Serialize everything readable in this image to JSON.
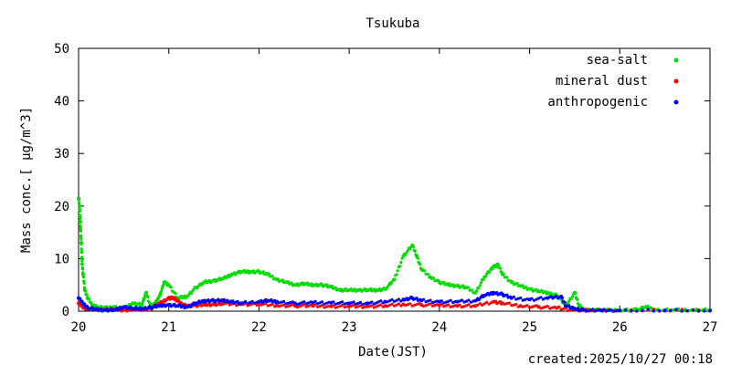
{
  "chart_data": {
    "type": "scatter",
    "title": "Tsukuba",
    "xlabel": "Date(JST)",
    "ylabel": "Mass conc.[ μg/m^3]",
    "footer": "created:2025/10/27 00:18",
    "xlim": [
      20,
      27
    ],
    "ylim": [
      0,
      50
    ],
    "x_ticks": [
      20,
      21,
      22,
      23,
      24,
      25,
      26,
      27
    ],
    "y_ticks": [
      0,
      10,
      20,
      30,
      40,
      50
    ],
    "grid": false,
    "legend_position": "top-right",
    "series": [
      {
        "name": "sea-salt",
        "color": "#00dd00",
        "points": [
          [
            20.0,
            21.5
          ],
          [
            20.01,
            20.0
          ],
          [
            20.02,
            17.0
          ],
          [
            20.03,
            13.0
          ],
          [
            20.04,
            9.0
          ],
          [
            20.05,
            7.0
          ],
          [
            20.07,
            4.0
          ],
          [
            20.1,
            2.5
          ],
          [
            20.15,
            1.2
          ],
          [
            20.2,
            0.8
          ],
          [
            20.3,
            0.6
          ],
          [
            20.4,
            0.8
          ],
          [
            20.5,
            0.5
          ],
          [
            20.6,
            1.5
          ],
          [
            20.7,
            1.2
          ],
          [
            20.75,
            3.5
          ],
          [
            20.8,
            0.8
          ],
          [
            20.85,
            1.5
          ],
          [
            20.9,
            3.0
          ],
          [
            20.95,
            5.5
          ],
          [
            21.0,
            5.0
          ],
          [
            21.1,
            2.5
          ],
          [
            21.2,
            2.8
          ],
          [
            21.3,
            4.5
          ],
          [
            21.4,
            5.5
          ],
          [
            21.5,
            5.8
          ],
          [
            21.6,
            6.2
          ],
          [
            21.7,
            7.0
          ],
          [
            21.8,
            7.5
          ],
          [
            21.9,
            7.5
          ],
          [
            22.0,
            7.5
          ],
          [
            22.1,
            7.0
          ],
          [
            22.2,
            6.0
          ],
          [
            22.3,
            5.5
          ],
          [
            22.4,
            5.0
          ],
          [
            22.5,
            5.2
          ],
          [
            22.6,
            5.0
          ],
          [
            22.7,
            5.0
          ],
          [
            22.8,
            4.6
          ],
          [
            22.9,
            4.0
          ],
          [
            23.0,
            4.0
          ],
          [
            23.1,
            4.0
          ],
          [
            23.2,
            4.0
          ],
          [
            23.3,
            4.0
          ],
          [
            23.4,
            4.2
          ],
          [
            23.5,
            6.0
          ],
          [
            23.6,
            10.5
          ],
          [
            23.7,
            12.5
          ],
          [
            23.75,
            10.5
          ],
          [
            23.8,
            8.0
          ],
          [
            23.9,
            6.5
          ],
          [
            24.0,
            5.5
          ],
          [
            24.1,
            5.0
          ],
          [
            24.2,
            4.8
          ],
          [
            24.3,
            4.5
          ],
          [
            24.4,
            3.5
          ],
          [
            24.5,
            6.5
          ],
          [
            24.6,
            8.5
          ],
          [
            24.65,
            8.8
          ],
          [
            24.7,
            7.0
          ],
          [
            24.8,
            5.5
          ],
          [
            24.9,
            4.8
          ],
          [
            25.0,
            4.2
          ],
          [
            25.1,
            3.8
          ],
          [
            25.2,
            3.5
          ],
          [
            25.3,
            3.0
          ],
          [
            25.4,
            1.0
          ],
          [
            25.5,
            3.5
          ],
          [
            25.55,
            1.0
          ],
          [
            25.6,
            0.3
          ],
          [
            25.8,
            0.2
          ],
          [
            26.0,
            0.2
          ],
          [
            26.2,
            0.3
          ],
          [
            26.3,
            0.8
          ],
          [
            26.4,
            0.2
          ],
          [
            26.6,
            0.2
          ],
          [
            26.8,
            0.2
          ],
          [
            27.0,
            0.2
          ]
        ]
      },
      {
        "name": "mineral dust",
        "color": "#ff0000",
        "points": [
          [
            20.0,
            1.5
          ],
          [
            20.05,
            0.8
          ],
          [
            20.1,
            0.4
          ],
          [
            20.2,
            0.2
          ],
          [
            20.3,
            0.3
          ],
          [
            20.4,
            0.3
          ],
          [
            20.5,
            0.2
          ],
          [
            20.6,
            0.3
          ],
          [
            20.7,
            0.4
          ],
          [
            20.8,
            0.5
          ],
          [
            20.9,
            1.5
          ],
          [
            21.0,
            2.5
          ],
          [
            21.05,
            2.5
          ],
          [
            21.1,
            2.0
          ],
          [
            21.15,
            1.2
          ],
          [
            21.2,
            1.0
          ],
          [
            21.3,
            1.1
          ],
          [
            21.4,
            1.2
          ],
          [
            21.5,
            1.3
          ],
          [
            21.6,
            1.4
          ],
          [
            21.8,
            1.3
          ],
          [
            22.0,
            1.3
          ],
          [
            22.2,
            1.1
          ],
          [
            22.4,
            1.0
          ],
          [
            22.6,
            1.0
          ],
          [
            22.8,
            0.9
          ],
          [
            23.0,
            0.9
          ],
          [
            23.2,
            0.9
          ],
          [
            23.4,
            1.0
          ],
          [
            23.6,
            1.3
          ],
          [
            23.8,
            1.2
          ],
          [
            24.0,
            1.1
          ],
          [
            24.2,
            1.0
          ],
          [
            24.4,
            1.0
          ],
          [
            24.6,
            1.8
          ],
          [
            24.7,
            1.5
          ],
          [
            24.9,
            1.0
          ],
          [
            25.1,
            0.8
          ],
          [
            25.3,
            0.6
          ],
          [
            25.5,
            0.2
          ],
          [
            25.7,
            0.1
          ],
          [
            26.0,
            0.1
          ],
          [
            26.5,
            0.1
          ],
          [
            27.0,
            0.1
          ]
        ]
      },
      {
        "name": "anthropogenic",
        "color": "#0000ff",
        "points": [
          [
            20.0,
            2.5
          ],
          [
            20.05,
            1.5
          ],
          [
            20.1,
            0.6
          ],
          [
            20.2,
            0.3
          ],
          [
            20.3,
            0.2
          ],
          [
            20.4,
            0.2
          ],
          [
            20.5,
            0.8
          ],
          [
            20.6,
            0.5
          ],
          [
            20.7,
            0.5
          ],
          [
            20.8,
            0.7
          ],
          [
            20.9,
            1.0
          ],
          [
            21.0,
            1.2
          ],
          [
            21.1,
            1.0
          ],
          [
            21.2,
            0.8
          ],
          [
            21.3,
            1.5
          ],
          [
            21.4,
            2.0
          ],
          [
            21.5,
            2.0
          ],
          [
            21.6,
            2.0
          ],
          [
            21.7,
            1.8
          ],
          [
            21.8,
            1.5
          ],
          [
            22.0,
            1.8
          ],
          [
            22.1,
            2.0
          ],
          [
            22.2,
            1.8
          ],
          [
            22.4,
            1.5
          ],
          [
            22.6,
            1.6
          ],
          [
            22.8,
            1.6
          ],
          [
            23.0,
            1.5
          ],
          [
            23.2,
            1.5
          ],
          [
            23.4,
            1.8
          ],
          [
            23.6,
            2.2
          ],
          [
            23.7,
            2.5
          ],
          [
            23.8,
            2.0
          ],
          [
            24.0,
            1.8
          ],
          [
            24.2,
            1.8
          ],
          [
            24.4,
            2.0
          ],
          [
            24.5,
            3.0
          ],
          [
            24.6,
            3.5
          ],
          [
            24.7,
            3.2
          ],
          [
            24.8,
            2.5
          ],
          [
            25.0,
            2.2
          ],
          [
            25.2,
            2.5
          ],
          [
            25.35,
            2.8
          ],
          [
            25.4,
            1.0
          ],
          [
            25.5,
            0.5
          ],
          [
            25.6,
            0.2
          ],
          [
            25.8,
            0.1
          ],
          [
            26.0,
            0.1
          ],
          [
            26.5,
            0.1
          ],
          [
            27.0,
            0.1
          ]
        ]
      }
    ]
  }
}
